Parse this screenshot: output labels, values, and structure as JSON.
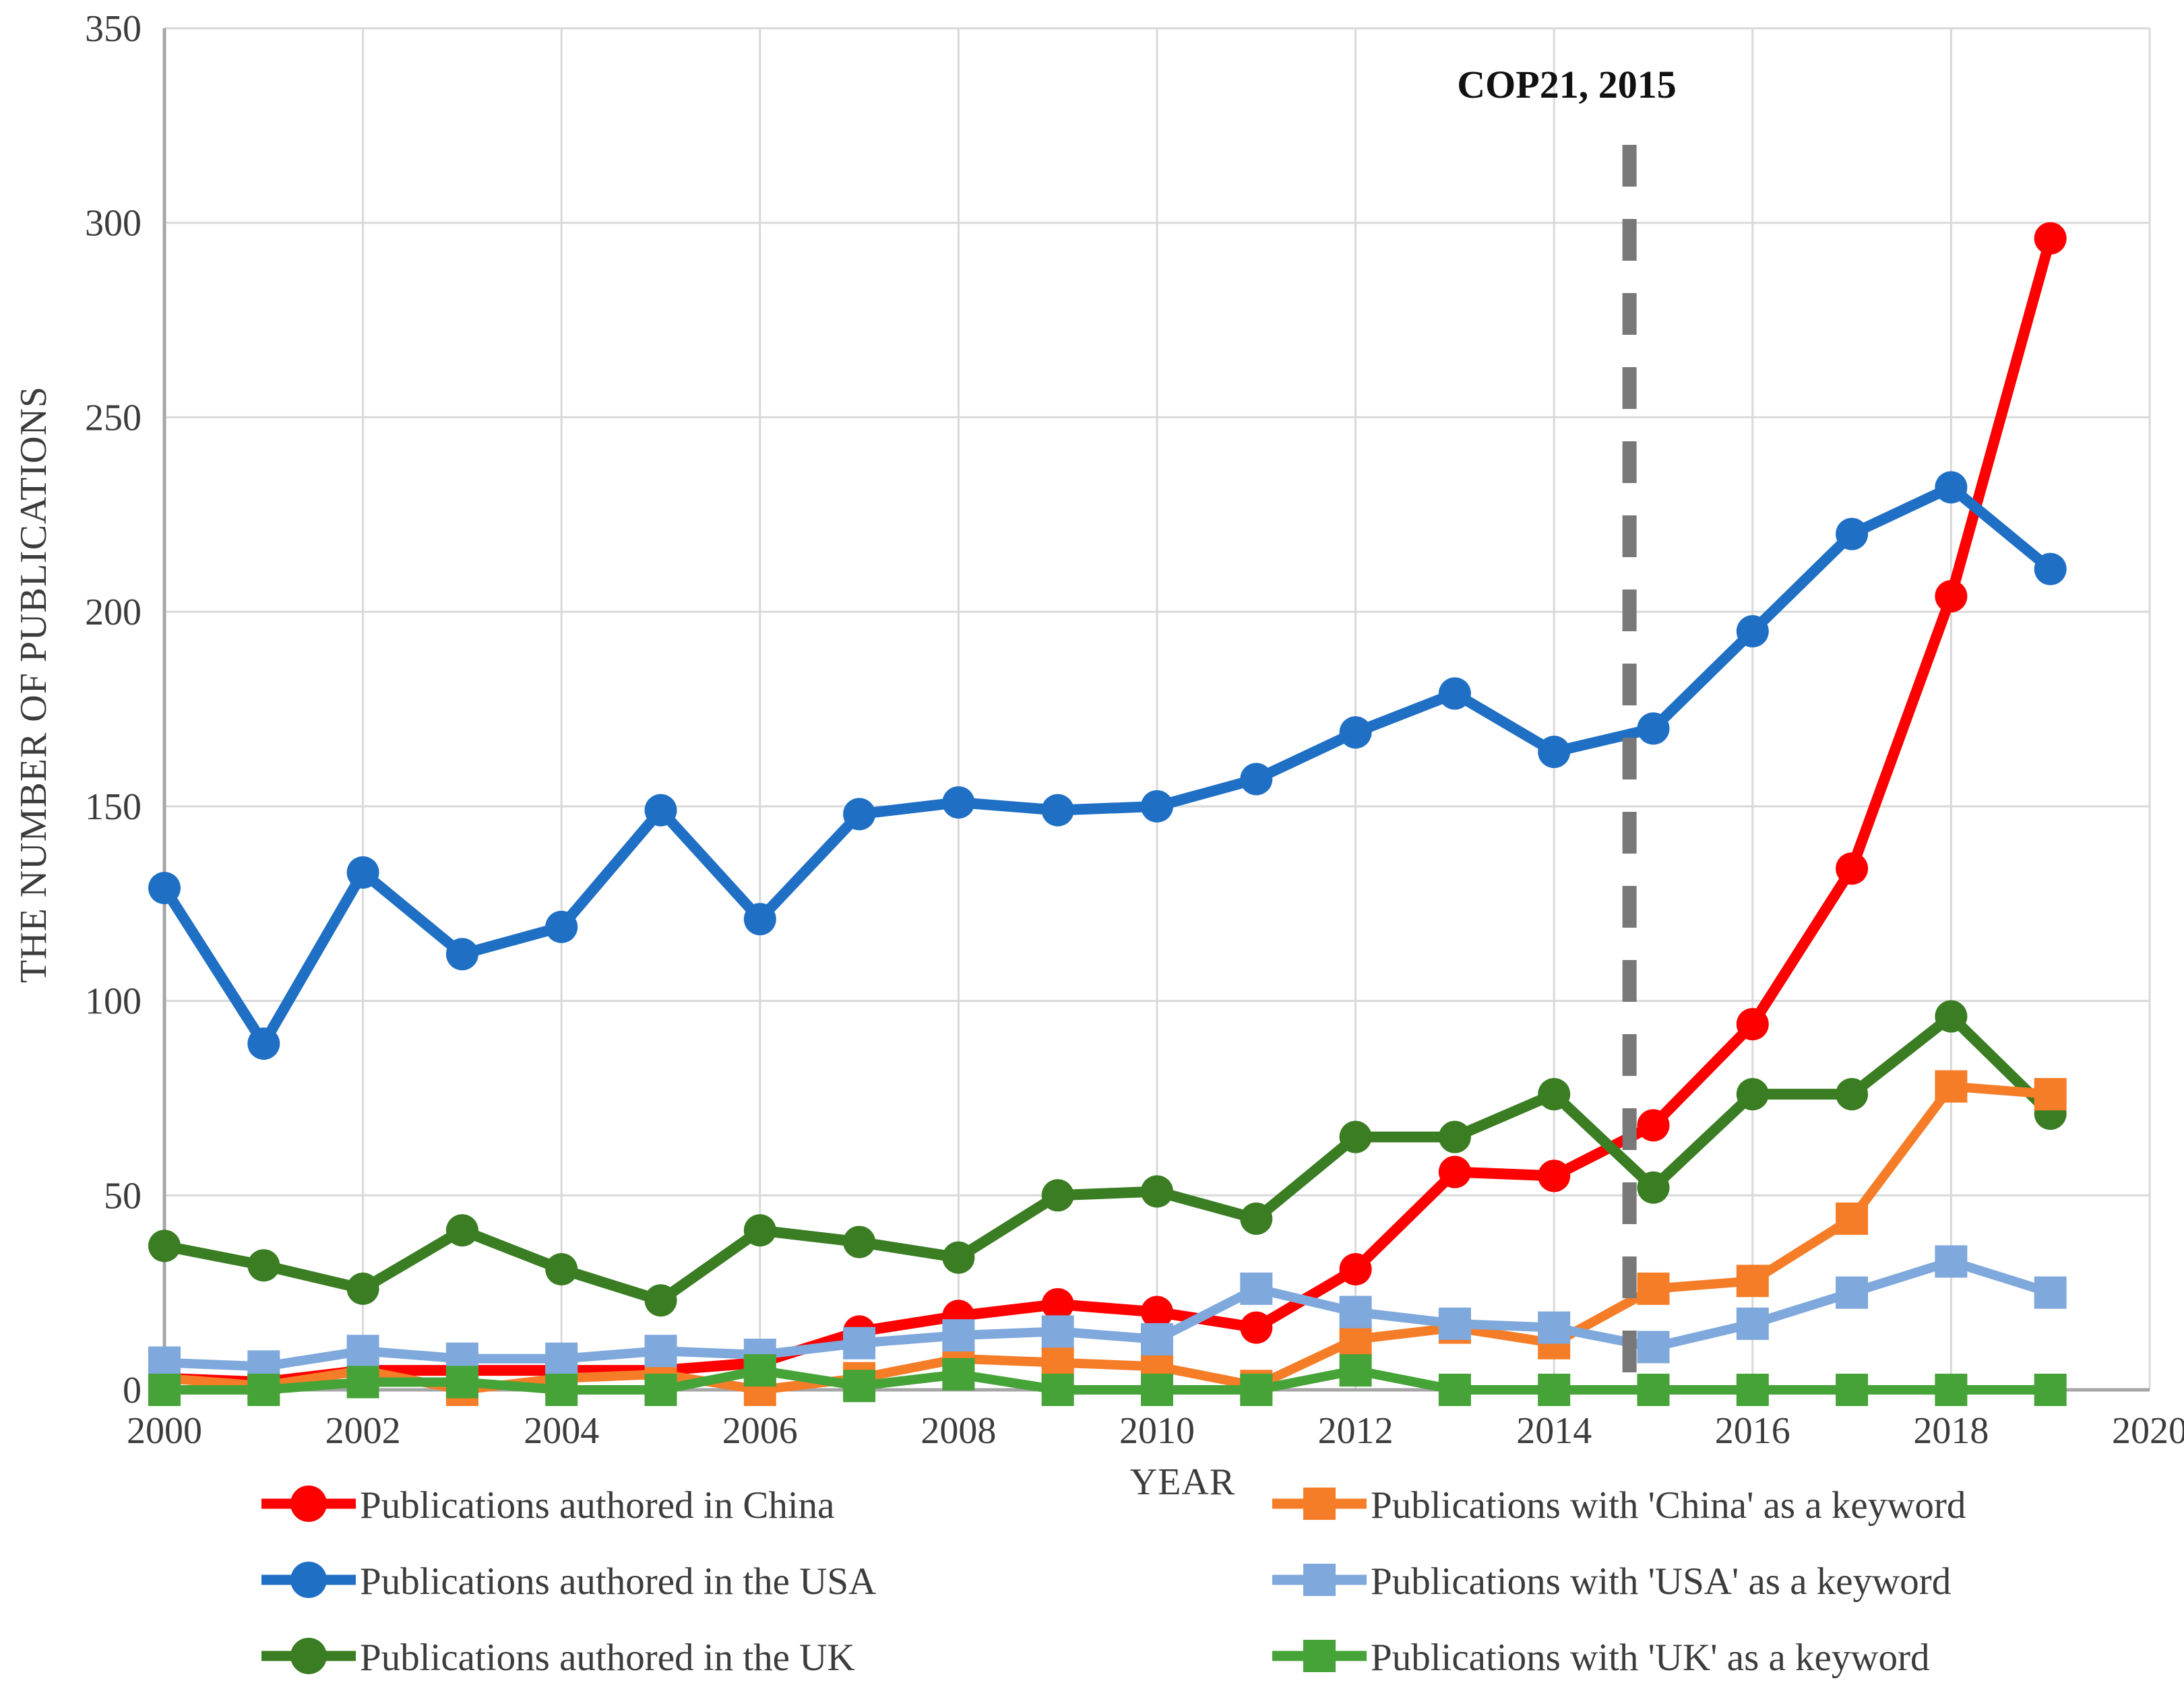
{
  "chart_data": {
    "type": "line",
    "title": "",
    "xlabel": "YEAR",
    "ylabel": "THE NUMBER OF PUBLICATIONS",
    "xlim": [
      2000,
      2020
    ],
    "ylim": [
      0,
      350
    ],
    "x_ticks": [
      2000,
      2002,
      2004,
      2006,
      2008,
      2010,
      2012,
      2014,
      2016,
      2018,
      2020
    ],
    "x_tick_labels": [
      "2000",
      "2002",
      "2004",
      "2006",
      "2008",
      "2010",
      "2012",
      "2014",
      "2016",
      "2018",
      "2020"
    ],
    "y_ticks": [
      0,
      50,
      100,
      150,
      200,
      250,
      300,
      350
    ],
    "y_tick_labels": [
      "0",
      "50",
      "100",
      "150",
      "200",
      "250",
      "300",
      "350"
    ],
    "grid": true,
    "legend_position": "bottom-two-columns",
    "annotation": {
      "label": "COP21, 2015",
      "x": 2014.76,
      "line_color": "#787878"
    },
    "x": [
      2000,
      2001,
      2002,
      2003,
      2004,
      2005,
      2006,
      2007,
      2008,
      2009,
      2010,
      2011,
      2012,
      2013,
      2014,
      2015,
      2016,
      2017,
      2018,
      2019
    ],
    "series": [
      {
        "id": "china-authored",
        "name": "Publications authored in China",
        "color": "#FE0000",
        "marker": "circle",
        "legend_column": 0,
        "values": [
          3,
          2,
          5,
          5,
          5,
          5,
          7,
          15,
          19,
          22,
          20,
          16,
          31,
          56,
          55,
          68,
          94,
          134,
          204,
          296
        ]
      },
      {
        "id": "usa-authored",
        "name": "Publications authored in the USA",
        "color": "#1F6FC5",
        "marker": "circle",
        "legend_column": 0,
        "values": [
          129,
          89,
          133,
          112,
          119,
          149,
          121,
          148,
          151,
          149,
          150,
          157,
          169,
          179,
          164,
          170,
          195,
          220,
          232,
          211
        ]
      },
      {
        "id": "uk-authored",
        "name": "Publications authored in the UK",
        "color": "#3A7D23",
        "marker": "circle",
        "legend_column": 0,
        "values": [
          37,
          32,
          26,
          41,
          31,
          23,
          41,
          38,
          34,
          50,
          51,
          44,
          65,
          65,
          76,
          52,
          76,
          76,
          96,
          71
        ]
      },
      {
        "id": "china-keyword",
        "name": "Publications with 'China' as a keyword",
        "color": "#F57D28",
        "marker": "square",
        "legend_column": 1,
        "values": [
          3,
          1,
          5,
          0,
          3,
          4,
          0,
          3,
          8,
          7,
          6,
          1,
          13,
          16,
          12,
          26,
          28,
          44,
          78,
          76
        ]
      },
      {
        "id": "usa-keyword",
        "name": "Publications with 'USA' as a keyword",
        "color": "#7FA8DC",
        "marker": "square",
        "legend_column": 1,
        "values": [
          7,
          6,
          10,
          8,
          8,
          10,
          9,
          12,
          14,
          15,
          13,
          26,
          20,
          17,
          16,
          11,
          17,
          25,
          33,
          25
        ]
      },
      {
        "id": "uk-keyword",
        "name": "Publications with 'UK' as a keyword",
        "color": "#45A337",
        "marker": "square",
        "legend_column": 1,
        "values": [
          0,
          0,
          2,
          2,
          0,
          0,
          5,
          1,
          4,
          0,
          0,
          0,
          5,
          0,
          0,
          0,
          0,
          0,
          0,
          0
        ]
      }
    ]
  }
}
